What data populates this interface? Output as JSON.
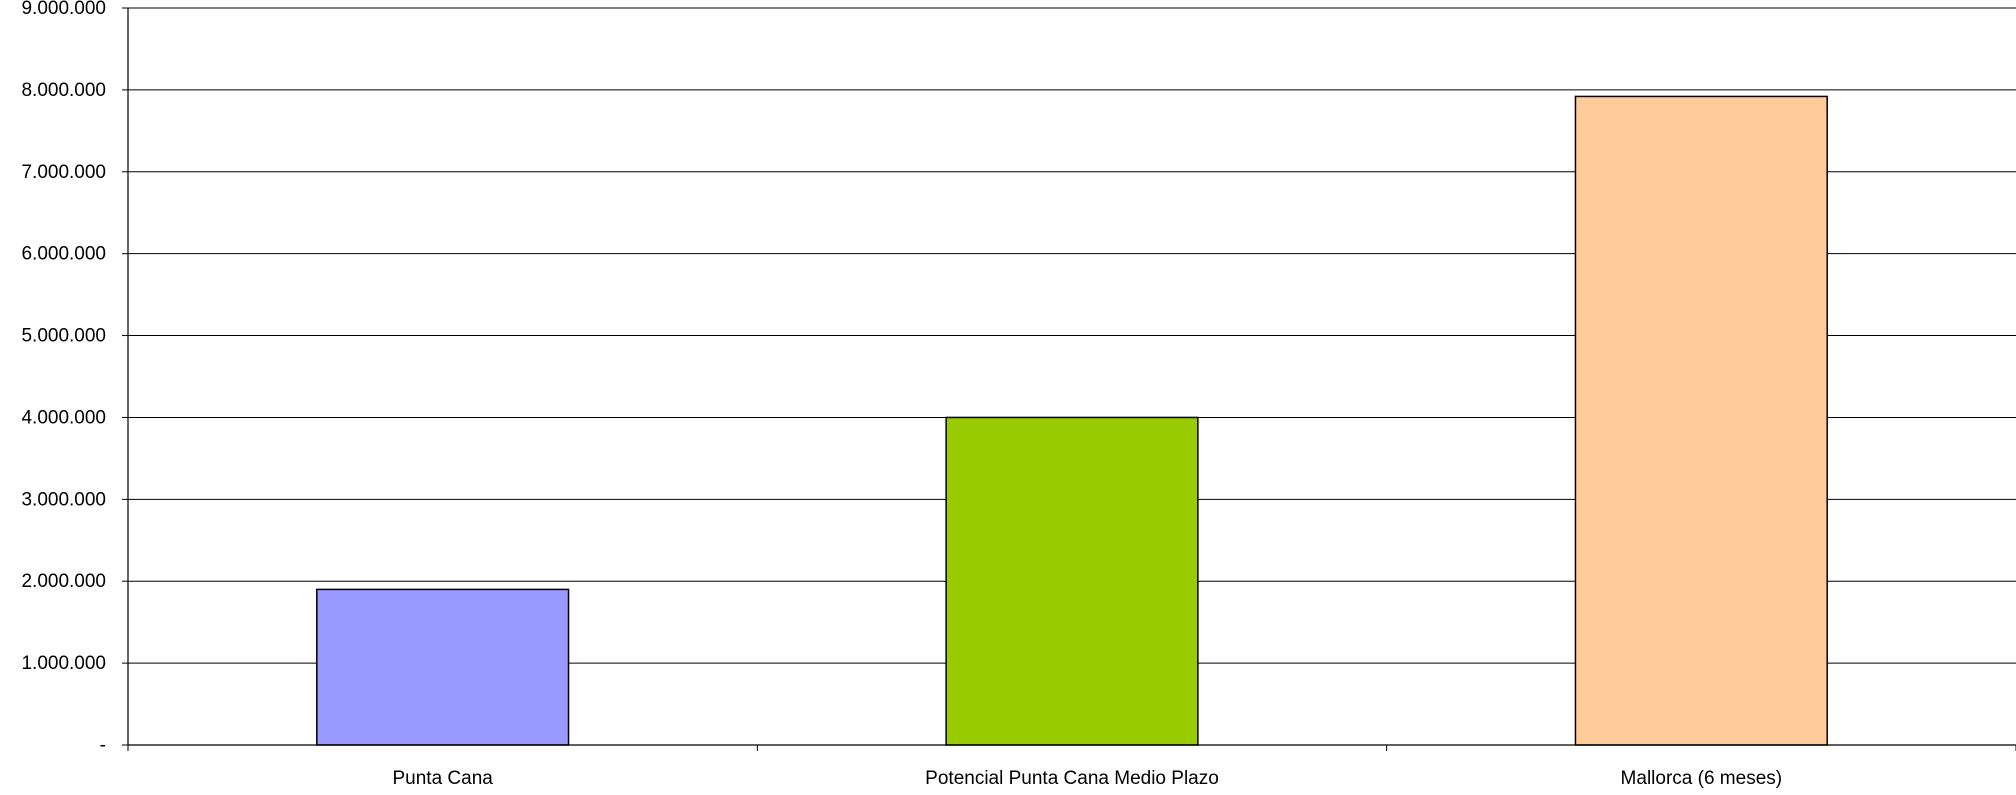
{
  "chart_data": {
    "type": "bar",
    "title": "",
    "xlabel": "",
    "ylabel": "",
    "categories": [
      "Punta Cana",
      "Potencial Punta Cana Medio Plazo",
      "Mallorca (6 meses)"
    ],
    "values": [
      1900000,
      4000000,
      7920000
    ],
    "ylim": [
      0,
      9000000
    ],
    "yticks": [
      {
        "value": 0,
        "label": "-"
      },
      {
        "value": 1000000,
        "label": "1.000.000"
      },
      {
        "value": 2000000,
        "label": "2.000.000"
      },
      {
        "value": 3000000,
        "label": "3.000.000"
      },
      {
        "value": 4000000,
        "label": "4.000.000"
      },
      {
        "value": 5000000,
        "label": "5.000.000"
      },
      {
        "value": 6000000,
        "label": "6.000.000"
      },
      {
        "value": 7000000,
        "label": "7.000.000"
      },
      {
        "value": 8000000,
        "label": "8.000.000"
      },
      {
        "value": 9000000,
        "label": "9.000.000"
      }
    ],
    "bar_colors": [
      "#9999ff",
      "#99cc00",
      "#ffcc99"
    ],
    "grid": true,
    "legend": "none"
  }
}
